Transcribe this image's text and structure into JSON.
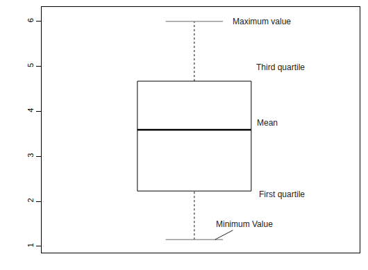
{
  "chart_data": {
    "type": "box",
    "stats": {
      "min": 1.15,
      "q1": 2.23,
      "median": 3.59,
      "q3": 4.67,
      "max": 6
    },
    "labels": {
      "max": "Maximum value",
      "q3": "Third quartile",
      "median": "Mean",
      "q1": "First quartile",
      "min": "Minimum Value"
    },
    "ylim": [
      0.86,
      6.32
    ],
    "yticks": [
      1,
      2,
      3,
      4,
      5,
      6
    ],
    "tick_labels": "y",
    "color": "#000000"
  }
}
